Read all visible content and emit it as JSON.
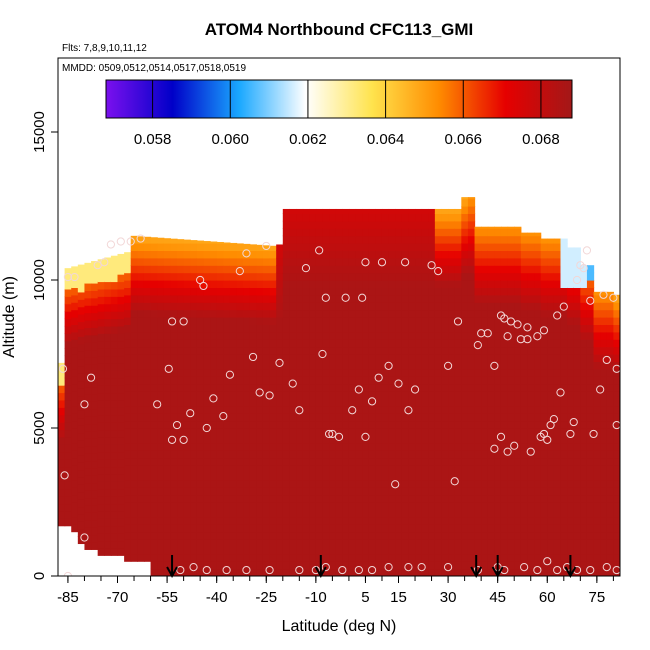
{
  "chart_data": {
    "type": "heatmap",
    "title": "ATOM4 Northbound CFC113_GMI",
    "flights_label": "Flts: 7,8,9,10,11,12",
    "dates_label": "MMDD: 0509,0512,0514,0517,0518,0519",
    "xlabel": "Latitude (deg N)",
    "ylabel": "Altitude (m)",
    "xlim": [
      -88,
      82
    ],
    "ylim": [
      0,
      17500
    ],
    "x_ticks": [
      -85,
      -70,
      -55,
      -40,
      -25,
      -10,
      5,
      15,
      30,
      45,
      60,
      75
    ],
    "x_minor_step": 5,
    "y_ticks": [
      0,
      5000,
      10000,
      15000
    ],
    "colorbar": {
      "range": [
        0.0568,
        0.0688
      ],
      "ticks": [
        "0.058",
        "0.060",
        "0.062",
        "0.064",
        "0.066",
        "0.068"
      ],
      "tick_values": [
        0.058,
        0.06,
        0.062,
        0.064,
        0.066,
        0.068
      ],
      "colors": [
        "#7b10ee",
        "#0000c8",
        "#1aa8ff",
        "#ffffff",
        "#ffe34d",
        "#ff8c00",
        "#e60000",
        "#a31818"
      ]
    },
    "dominant_value": 0.0686,
    "takeoff_landing_latitudes": [
      -53.5,
      -8.5,
      38.5,
      45,
      67
    ],
    "observations": [
      [
        -86.5,
        7000
      ],
      [
        -86,
        3400
      ],
      [
        -85,
        10100
      ],
      [
        -83,
        10100
      ],
      [
        -80,
        5800
      ],
      [
        -80,
        1300
      ],
      [
        -78,
        6700
      ],
      [
        -76,
        10500
      ],
      [
        -74,
        10600
      ],
      [
        -72,
        11200
      ],
      [
        -69,
        11300
      ],
      [
        -66,
        11300
      ],
      [
        -63,
        11400
      ],
      [
        -58,
        5800
      ],
      [
        -54.5,
        7000
      ],
      [
        -53.5,
        4600
      ],
      [
        -53.5,
        8600
      ],
      [
        -52,
        5100
      ],
      [
        -50,
        8600
      ],
      [
        -50,
        4600
      ],
      [
        -48,
        5500
      ],
      [
        -45,
        10000
      ],
      [
        -44,
        9800
      ],
      [
        -43,
        5000
      ],
      [
        -41,
        6000
      ],
      [
        -38,
        5400
      ],
      [
        -36,
        6800
      ],
      [
        -33,
        10300
      ],
      [
        -31,
        10900
      ],
      [
        -29,
        7400
      ],
      [
        -27,
        6200
      ],
      [
        -25,
        11150
      ],
      [
        -24,
        6100
      ],
      [
        -21,
        7200
      ],
      [
        -17,
        6500
      ],
      [
        -15,
        5600
      ],
      [
        -13,
        10400
      ],
      [
        -9,
        11000
      ],
      [
        -8,
        7500
      ],
      [
        -7,
        9400
      ],
      [
        -6,
        4800
      ],
      [
        -5,
        4800
      ],
      [
        -3,
        4700
      ],
      [
        -1,
        9400
      ],
      [
        1,
        5600
      ],
      [
        3,
        6300
      ],
      [
        4,
        9400
      ],
      [
        5,
        10600
      ],
      [
        5,
        4700
      ],
      [
        7,
        5900
      ],
      [
        9,
        6700
      ],
      [
        10,
        10600
      ],
      [
        12,
        7100
      ],
      [
        14,
        3100
      ],
      [
        15,
        6500
      ],
      [
        17,
        10600
      ],
      [
        18,
        5600
      ],
      [
        20,
        6300
      ],
      [
        25,
        10500
      ],
      [
        27,
        10300
      ],
      [
        30,
        7100
      ],
      [
        32,
        3200
      ],
      [
        33,
        8600
      ],
      [
        39,
        7800
      ],
      [
        40,
        8200
      ],
      [
        42,
        8200
      ],
      [
        44,
        7100
      ],
      [
        44,
        4300
      ],
      [
        46,
        8800
      ],
      [
        46,
        4700
      ],
      [
        47,
        8700
      ],
      [
        48,
        8100
      ],
      [
        48,
        4200
      ],
      [
        49,
        8600
      ],
      [
        50,
        4400
      ],
      [
        51,
        8500
      ],
      [
        52,
        8000
      ],
      [
        54,
        8400
      ],
      [
        54,
        8000
      ],
      [
        55,
        4200
      ],
      [
        57,
        8100
      ],
      [
        58,
        4700
      ],
      [
        59,
        8300
      ],
      [
        59,
        4800
      ],
      [
        60,
        4600
      ],
      [
        61,
        5100
      ],
      [
        62,
        5300
      ],
      [
        63,
        8800
      ],
      [
        64,
        6200
      ],
      [
        65,
        9100
      ],
      [
        67,
        4800
      ],
      [
        68,
        5200
      ],
      [
        69,
        10000
      ],
      [
        70,
        10500
      ],
      [
        71,
        10400
      ],
      [
        72,
        11000
      ],
      [
        73,
        9300
      ],
      [
        74,
        4800
      ],
      [
        76,
        6300
      ],
      [
        77,
        9500
      ],
      [
        78,
        7300
      ],
      [
        80,
        9400
      ],
      [
        81,
        5100
      ],
      [
        81,
        7000
      ],
      [
        -85,
        0
      ],
      [
        -51,
        200
      ],
      [
        -47,
        300
      ],
      [
        -43,
        200
      ],
      [
        -37,
        200
      ],
      [
        -31,
        200
      ],
      [
        -24,
        200
      ],
      [
        -15,
        200
      ],
      [
        -10,
        200
      ],
      [
        -7,
        300
      ],
      [
        -2,
        200
      ],
      [
        3,
        200
      ],
      [
        7,
        200
      ],
      [
        12,
        300
      ],
      [
        18,
        300
      ],
      [
        22,
        300
      ],
      [
        30,
        300
      ],
      [
        39,
        200
      ],
      [
        45,
        300
      ],
      [
        47,
        200
      ],
      [
        53,
        300
      ],
      [
        57,
        200
      ],
      [
        60,
        500
      ],
      [
        63,
        200
      ],
      [
        66,
        300
      ],
      [
        69,
        200
      ],
      [
        73,
        200
      ],
      [
        78,
        300
      ],
      [
        81,
        200
      ]
    ]
  }
}
